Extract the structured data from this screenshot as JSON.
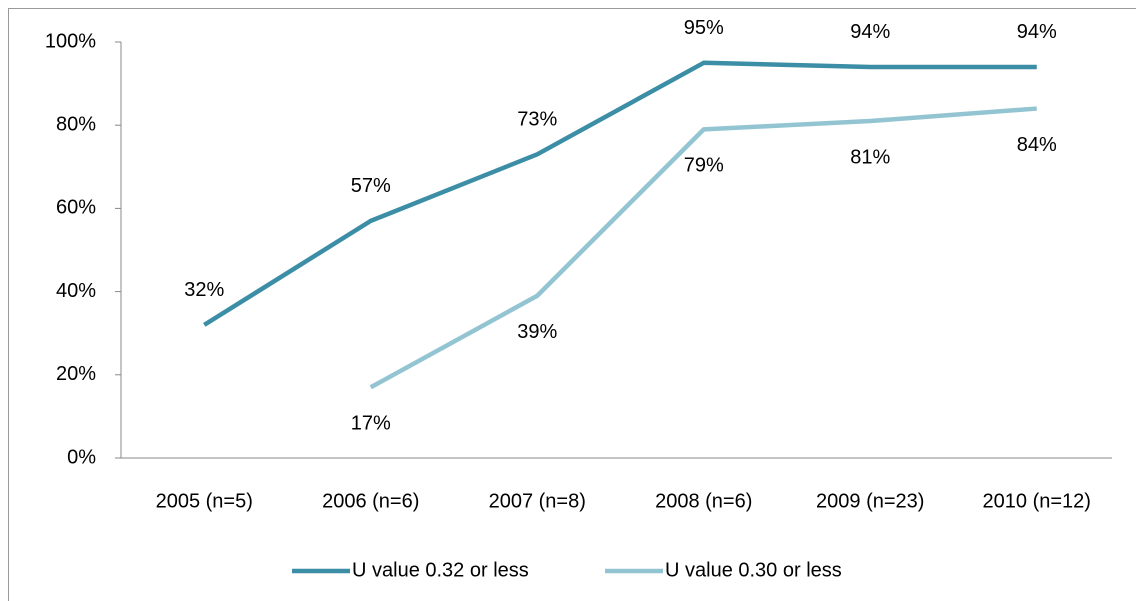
{
  "chart_data": {
    "type": "line",
    "categories": [
      "2005 (n=5)",
      "2006 (n=6)",
      "2007 (n=8)",
      "2008 (n=6)",
      "2009 (n=23)",
      "2010 (n=12)"
    ],
    "series": [
      {
        "name": "U value 0.32 or less",
        "color": "#3b8ea5",
        "values": [
          32,
          57,
          73,
          95,
          94,
          94
        ],
        "value_labels": [
          "32%",
          "57%",
          "73%",
          "95%",
          "94%",
          "94%"
        ]
      },
      {
        "name": "U value 0.30 or less",
        "color": "#93c4d2",
        "values": [
          null,
          17,
          39,
          79,
          81,
          84
        ],
        "value_labels": [
          null,
          "17%",
          "39%",
          "79%",
          "81%",
          "84%"
        ]
      }
    ],
    "ylim": [
      0,
      100
    ],
    "yticks": [
      {
        "value": 0,
        "label": "0%"
      },
      {
        "value": 20,
        "label": "20%"
      },
      {
        "value": 40,
        "label": "40%"
      },
      {
        "value": 60,
        "label": "60%"
      },
      {
        "value": 80,
        "label": "80%"
      },
      {
        "value": 100,
        "label": "100%"
      }
    ],
    "legend": "bottom"
  }
}
